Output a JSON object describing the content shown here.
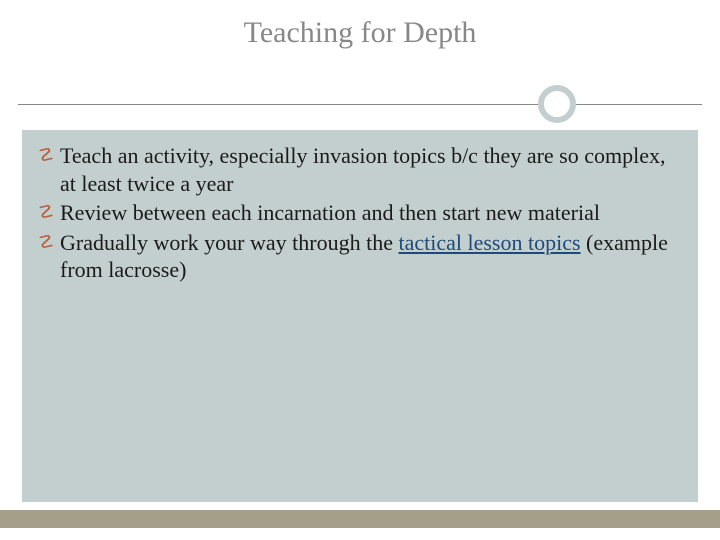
{
  "slide": {
    "title": "Teaching for Depth",
    "title_color": "#888888",
    "title_fontsize": 30,
    "divider": {
      "line_color": "#888888",
      "ring_border_color": "#c3cfce",
      "ring_fill": "#ffffff",
      "ring_border_width": 6
    },
    "content": {
      "background_color": "#c3cfce",
      "bullet_marker_color": "#b85c3a",
      "text_color": "#1a1a1a",
      "fontsize": 22,
      "bullets": [
        {
          "text_before": "Teach an activity, especially invasion topics b/c they are so complex, at least twice a year",
          "link_text": "",
          "text_after": ""
        },
        {
          "text_before": "Review between each incarnation and then start new material",
          "link_text": "",
          "text_after": ""
        },
        {
          "text_before": "Gradually work your way through the ",
          "link_text": "tactical lesson topics",
          "text_after": " (example from lacrosse)"
        }
      ],
      "link_color": "#1e4a7a"
    },
    "footer_bar_color": "#a59e89"
  }
}
